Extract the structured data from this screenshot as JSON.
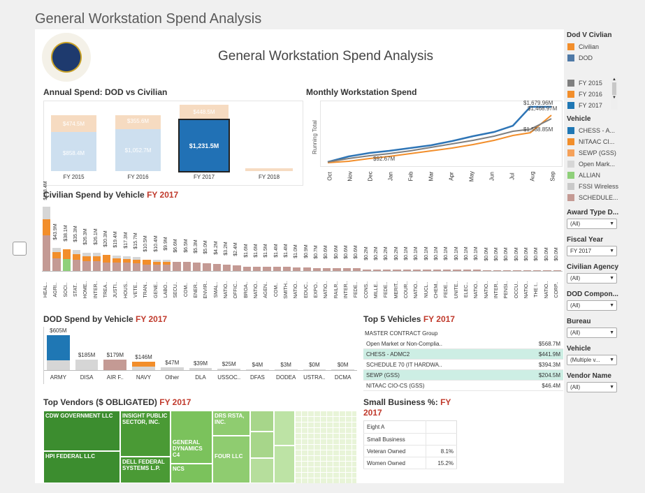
{
  "outer_title": "General Workstation Spend Analysis",
  "dashboard_title": "General Workstation Spend Analysis",
  "annual": {
    "title": "Annual Spend: DOD vs Civilian",
    "bars": [
      {
        "year": "FY 2015",
        "dod": "$858.4M",
        "civ": "$474.5M"
      },
      {
        "year": "FY 2016",
        "dod": "$1,052.7M",
        "civ": "$355.6M"
      },
      {
        "year": "FY 2017",
        "dod": "$1,231.5M",
        "civ": "$448.5M"
      },
      {
        "year": "FY 2018",
        "dod": "",
        "civ": ""
      }
    ]
  },
  "monthly": {
    "title": "Monthly Workstation Spend",
    "ylabel": "Running Total",
    "months": [
      "Oct",
      "Nov",
      "Dec",
      "Jan",
      "Feb",
      "Mar",
      "Apr",
      "May",
      "Jun",
      "Jul",
      "Aug",
      "Sep"
    ],
    "labels": {
      "start": "$92.67M",
      "end_top": "$1,679.96M",
      "end_mid": "$1,468.97M",
      "end_low": "$1,588.85M"
    }
  },
  "civ_vehicle": {
    "title": "Civilian Spend by Vehicle",
    "fy": "FY 2017",
    "items": [
      {
        "label": "HEAL..",
        "value": "$128.4M",
        "v": 128.4
      },
      {
        "label": "AGRI..",
        "value": "$43.9M",
        "v": 43.9
      },
      {
        "label": "SOCI..",
        "value": "$38.1M",
        "v": 38.1
      },
      {
        "label": "STAT..",
        "value": "$35.3M",
        "v": 35.3
      },
      {
        "label": "HOME..",
        "value": "$26.3M",
        "v": 26.3
      },
      {
        "label": "INTER..",
        "value": "$26.1M",
        "v": 26.1
      },
      {
        "label": "TREA..",
        "value": "$20.3M",
        "v": 20.3
      },
      {
        "label": "JUSTI..",
        "value": "$19.4M",
        "v": 19.4
      },
      {
        "label": "HOUS..",
        "value": "$17.3M",
        "v": 17.3
      },
      {
        "label": "VETE..",
        "value": "$15.7M",
        "v": 15.7
      },
      {
        "label": "TRAN..",
        "value": "$10.5M",
        "v": 10.5
      },
      {
        "label": "GENE..",
        "value": "$10.4M",
        "v": 10.4
      },
      {
        "label": "LABO..",
        "value": "$9.9M",
        "v": 9.9
      },
      {
        "label": "SECU..",
        "value": "$6.6M",
        "v": 6.6
      },
      {
        "label": "COM..",
        "value": "$6.5M",
        "v": 6.5
      },
      {
        "label": "ENER..",
        "value": "$5.3M",
        "v": 5.3
      },
      {
        "label": "ENVIR..",
        "value": "$5.0M",
        "v": 5.0
      },
      {
        "label": "SMAL..",
        "value": "$4.2M",
        "v": 4.2
      },
      {
        "label": "NATIO..",
        "value": "$3.2M",
        "v": 3.2
      },
      {
        "label": "OFFIC..",
        "value": "$2.4M",
        "v": 2.4
      },
      {
        "label": "BROA..",
        "value": "$1.6M",
        "v": 1.6
      },
      {
        "label": "NATIO..",
        "value": "$1.6M",
        "v": 1.6
      },
      {
        "label": "AGEN..",
        "value": "$1.5M",
        "v": 1.5
      },
      {
        "label": "COM..",
        "value": "$1.4M",
        "v": 1.4
      },
      {
        "label": "SMITH..",
        "value": "$1.4M",
        "v": 1.4
      },
      {
        "label": "NATIO..",
        "value": "$1.0M",
        "v": 1.0
      },
      {
        "label": "EDUC..",
        "value": "$0.9M",
        "v": 0.9
      },
      {
        "label": "EXPO..",
        "value": "$0.7M",
        "v": 0.7
      },
      {
        "label": "NATIO..",
        "value": "$0.6M",
        "v": 0.6
      },
      {
        "label": "RAILR..",
        "value": "$0.6M",
        "v": 0.6
      },
      {
        "label": "INTER..",
        "value": "$0.6M",
        "v": 0.6
      },
      {
        "label": "FEDE..",
        "value": "$0.6M",
        "v": 0.6
      },
      {
        "label": "CONS..",
        "value": "$0.2M",
        "v": 0.2
      },
      {
        "label": "MILLE..",
        "value": "$0.2M",
        "v": 0.2
      },
      {
        "label": "FEDE..",
        "value": "$0.2M",
        "v": 0.2
      },
      {
        "label": "MERIT..",
        "value": "$0.2M",
        "v": 0.2
      },
      {
        "label": "COUR..",
        "value": "$0.1M",
        "v": 0.1
      },
      {
        "label": "NATIO..",
        "value": "$0.1M",
        "v": 0.1
      },
      {
        "label": "NUCL..",
        "value": "$0.1M",
        "v": 0.1
      },
      {
        "label": "CHEM..",
        "value": "$0.1M",
        "v": 0.1
      },
      {
        "label": "FEDE..",
        "value": "$0.1M",
        "v": 0.1
      },
      {
        "label": "UNITE..",
        "value": "$0.1M",
        "v": 0.1
      },
      {
        "label": "ELEC..",
        "value": "$0.1M",
        "v": 0.1
      },
      {
        "label": "NATIO..",
        "value": "$0.1M",
        "v": 0.1
      },
      {
        "label": "NATIO..",
        "value": "$0.0M",
        "v": 0.0
      },
      {
        "label": "INTER..",
        "value": "$0.0M",
        "v": 0.0
      },
      {
        "label": "PENSI..",
        "value": "$0.0M",
        "v": 0.0
      },
      {
        "label": "OCCU..",
        "value": "$0.0M",
        "v": 0.0
      },
      {
        "label": "NATIO..",
        "value": "$0.0M",
        "v": 0.0
      },
      {
        "label": "THE I..",
        "value": "$0.0M",
        "v": 0.0
      },
      {
        "label": "NATIO..",
        "value": "$0.0M",
        "v": 0.0
      },
      {
        "label": "CORP..",
        "value": "$0.0M",
        "v": 0.0
      }
    ]
  },
  "dod_vehicle": {
    "title": "DOD Spend by Vehicle",
    "fy": "FY 2017",
    "items": [
      {
        "label": "ARMY",
        "value": "$605M",
        "v": 605
      },
      {
        "label": "DISA",
        "value": "$185M",
        "v": 185
      },
      {
        "label": "AIR F..",
        "value": "$179M",
        "v": 179
      },
      {
        "label": "NAVY",
        "value": "$146M",
        "v": 146
      },
      {
        "label": "Other",
        "value": "$47M",
        "v": 47
      },
      {
        "label": "DLA",
        "value": "$39M",
        "v": 39
      },
      {
        "label": "USSOC..",
        "value": "$25M",
        "v": 25
      },
      {
        "label": "DFAS",
        "value": "$4M",
        "v": 4
      },
      {
        "label": "DODEA",
        "value": "$3M",
        "v": 3
      },
      {
        "label": "USTRA..",
        "value": "$0M",
        "v": 0
      },
      {
        "label": "DCMA",
        "value": "$0M",
        "v": 0
      }
    ]
  },
  "top5": {
    "title": "Top 5 Vehicles",
    "fy": "FY 2017",
    "header": "MASTER CONTRACT Group",
    "rows": [
      {
        "name": "Open Market or Non-Complia..",
        "value": "$568.7M"
      },
      {
        "name": "CHESS - ADMC2",
        "value": "$441.9M"
      },
      {
        "name": "SCHEDULE 70 (IT HARDWA..",
        "value": "$394.3M"
      },
      {
        "name": "SEWP (GSS)",
        "value": "$204.5M"
      },
      {
        "name": "NITAAC CIO-CS (GSS)",
        "value": "$46.4M"
      }
    ]
  },
  "vendors": {
    "title": "Top Vendors  ($ OBLIGATED)",
    "fy": "FY 2017",
    "names": {
      "cdw": "CDW GOVERNMENT LLC",
      "hpi": "HPI FEDERAL LLC",
      "insight": "INSIGHT PUBLIC SECTOR, INC.",
      "dell": "DELL FEDERAL SYSTEMS L.P.",
      "gd": "GENERAL DYNAMICS C4",
      "ncs": "NCS",
      "drs": "DRS RSTA, INC.",
      "four": "FOUR LLC"
    }
  },
  "small_business": {
    "title": "Small Business %:",
    "fy": "FY",
    "fy2": "2017",
    "rows": [
      {
        "label": "Eight A",
        "value": ""
      },
      {
        "label": "Small Business",
        "value": ""
      },
      {
        "label": "Veteran Owned",
        "value": "8.1%"
      },
      {
        "label": "Women Owned",
        "value": "15.2%"
      }
    ]
  },
  "sidebar": {
    "dod_civ": {
      "title": "Dod V Civlian",
      "items": [
        {
          "label": "Civilian",
          "color": "#f28e2b"
        },
        {
          "label": "DOD",
          "color": "#4e79a7"
        }
      ]
    },
    "fy_legend": [
      {
        "label": "FY 2015",
        "color": "#7f7f7f"
      },
      {
        "label": "FY 2016",
        "color": "#f28e2b"
      },
      {
        "label": "FY 2017",
        "color": "#1f77b4"
      }
    ],
    "vehicle_legend": {
      "title": "Vehicle",
      "items": [
        {
          "label": "CHESS - A...",
          "color": "#1f77b4"
        },
        {
          "label": "NITAAC CI...",
          "color": "#f28e2b"
        },
        {
          "label": "SEWP (GSS)",
          "color": "#f5a15a"
        },
        {
          "label": "Open Mark...",
          "color": "#d6d6d6"
        },
        {
          "label": "ALLIAN",
          "color": "#8fd07a"
        },
        {
          "label": "FSSI Wireless",
          "color": "#c9c9c9"
        },
        {
          "label": "SCHEDULE...",
          "color": "#c49a94"
        }
      ]
    },
    "filters": [
      {
        "label": "Award Type D...",
        "value": "(All)"
      },
      {
        "label": "Fiscal Year",
        "value": "FY 2017"
      },
      {
        "label": "Civilian Agency",
        "value": "(All)"
      },
      {
        "label": "DOD Compon...",
        "value": "(All)"
      },
      {
        "label": "Bureau",
        "value": "(All)"
      },
      {
        "label": "Vehicle",
        "value": "(Multiple v..."
      },
      {
        "label": "Vendor Name",
        "value": "(All)"
      }
    ]
  }
}
